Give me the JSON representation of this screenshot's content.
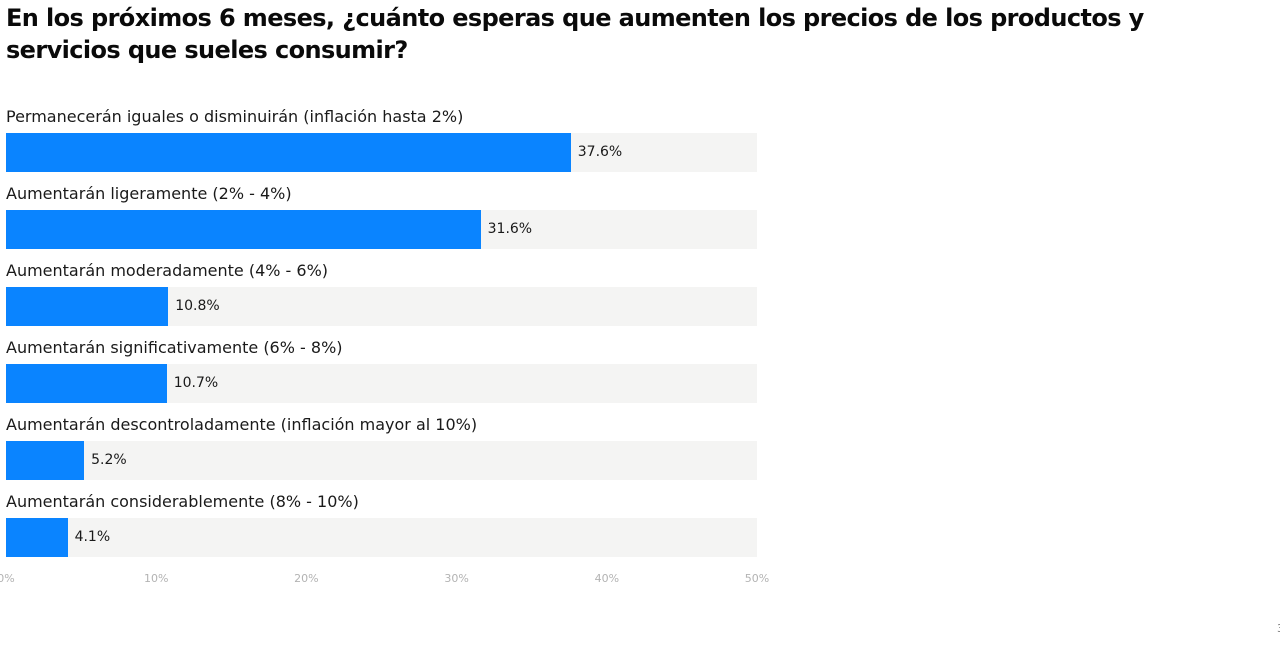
{
  "chart_data": {
    "type": "bar",
    "orientation": "horizontal",
    "title": "En los próximos 6 meses, ¿cuánto esperas que aumenten los precios de los productos y servicios que sueles consumir?",
    "categories": [
      "Permanecerán iguales o disminuirán (inflación hasta 2%)",
      "Aumentarán ligeramente (2% - 4%)",
      "Aumentarán moderadamente (4% - 6%)",
      "Aumentarán significativamente (6% - 8%)",
      "Aumentarán descontroladamente (inflación mayor al 10%)",
      "Aumentarán considerablemente (8% - 10%)"
    ],
    "values": [
      37.6,
      31.6,
      10.8,
      10.7,
      5.2,
      4.1
    ],
    "value_labels": [
      "37.6%",
      "31.6%",
      "10.8%",
      "10.7%",
      "5.2%",
      "4.1%"
    ],
    "xlim": [
      0,
      50
    ],
    "x_ticks": [
      "0%",
      "10%",
      "20%",
      "30%",
      "40%",
      "50%"
    ],
    "xlabel": "",
    "ylabel": "",
    "grid": false,
    "legend": "none",
    "colors": {
      "bar": "#0a84ff",
      "track": "#f4f4f3",
      "tick_text": "#b3b3b3",
      "text": "#1a1a1a"
    }
  }
}
